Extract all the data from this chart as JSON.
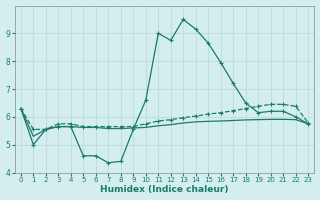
{
  "title": "",
  "xlabel": "Humidex (Indice chaleur)",
  "xlim": [
    -0.5,
    23.5
  ],
  "ylim": [
    4,
    10
  ],
  "yticks": [
    4,
    5,
    6,
    7,
    8,
    9
  ],
  "xticks": [
    0,
    1,
    2,
    3,
    4,
    5,
    6,
    7,
    8,
    9,
    10,
    11,
    12,
    13,
    14,
    15,
    16,
    17,
    18,
    19,
    20,
    21,
    22,
    23
  ],
  "bg_color": "#d4eeee",
  "grid_color": "#c0dede",
  "line_color": "#1a7a6e",
  "line1_y": [
    6.3,
    5.0,
    5.55,
    5.65,
    5.65,
    4.6,
    4.6,
    4.35,
    4.4,
    5.55,
    6.6,
    9.0,
    8.75,
    9.5,
    9.15,
    8.65,
    7.95,
    7.2,
    6.5,
    6.15,
    6.2,
    6.2,
    6.0,
    5.75
  ],
  "line2_y": [
    6.3,
    5.55,
    5.55,
    5.75,
    5.75,
    5.65,
    5.65,
    5.65,
    5.65,
    5.65,
    5.75,
    5.85,
    5.9,
    5.97,
    6.03,
    6.1,
    6.15,
    6.22,
    6.3,
    6.38,
    6.45,
    6.45,
    6.38,
    5.78
  ],
  "line3_y": [
    6.3,
    5.3,
    5.55,
    5.65,
    5.65,
    5.62,
    5.62,
    5.58,
    5.58,
    5.6,
    5.62,
    5.68,
    5.72,
    5.78,
    5.82,
    5.84,
    5.85,
    5.87,
    5.89,
    5.9,
    5.91,
    5.91,
    5.9,
    5.75
  ]
}
